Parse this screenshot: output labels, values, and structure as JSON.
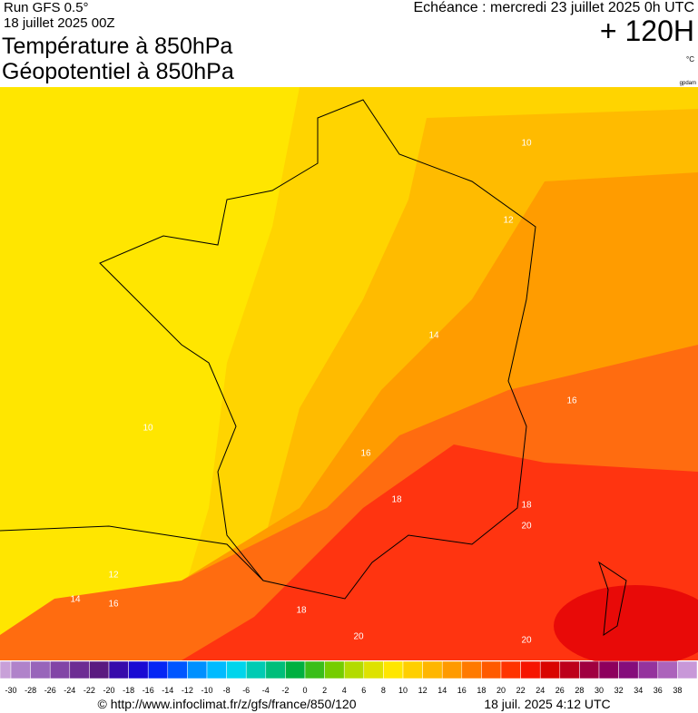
{
  "header": {
    "run": "Run GFS 0.5°",
    "date": "18 juillet 2025 00Z",
    "title_1": "Température à 850hPa",
    "title_2": "Géopotentiel à 850hPa",
    "echeance": "Echéance : mercredi 23 juillet 2025 0h UTC",
    "lead": "+ 120H",
    "unit": "°C",
    "credit": "gpdam"
  },
  "map": {
    "contour_labels": [
      10,
      12,
      14,
      16,
      10,
      16,
      18,
      18,
      20,
      12,
      14,
      16,
      18,
      20,
      20
    ]
  },
  "colorbar": {
    "labels": [
      -30,
      -28,
      -26,
      -24,
      -22,
      -20,
      -18,
      -16,
      -14,
      -12,
      -10,
      -8,
      -6,
      -4,
      -2,
      0,
      2,
      4,
      6,
      8,
      10,
      12,
      14,
      16,
      18,
      20,
      22,
      24,
      26,
      28,
      30,
      32,
      34,
      36,
      38
    ]
  },
  "footer": {
    "url": "© http://www.infoclimat.fr/z/gfs/france/850/120",
    "generated": "18 juil. 2025  4:12 UTC"
  }
}
